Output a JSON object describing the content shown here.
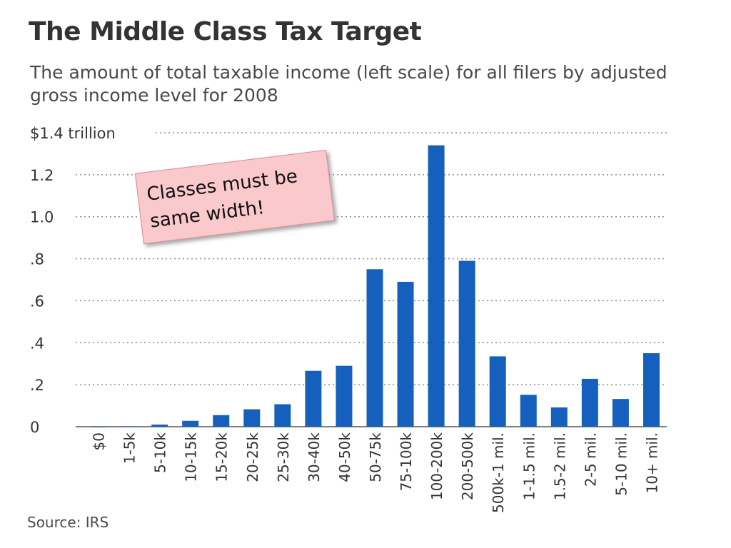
{
  "chart_data": {
    "type": "bar",
    "title": "The Middle Class Tax Target",
    "subtitle": "The amount of total taxable income (left scale) for all filers by adjusted gross income level for 2008",
    "ylim": [
      0,
      1.4
    ],
    "yticks": [
      {
        "value": 1.4,
        "label": "$1.4 trillion"
      },
      {
        "value": 1.2,
        "label": "1.2"
      },
      {
        "value": 1.0,
        "label": "1.0"
      },
      {
        "value": 0.8,
        "label": ".8"
      },
      {
        "value": 0.6,
        "label": ".6"
      },
      {
        "value": 0.4,
        "label": ".4"
      },
      {
        "value": 0.2,
        "label": ".2"
      },
      {
        "value": 0,
        "label": "0"
      }
    ],
    "categories": [
      "$0",
      "1-5k",
      "5-10k",
      "10-15k",
      "15-20k",
      "20-25k",
      "25-30k",
      "30-40k",
      "40-50k",
      "50-75k",
      "75-100k",
      "100-200k",
      "200-500k",
      "500k-1 mil.",
      "1-1.5 mil.",
      "1.5-2 mil.",
      "2-5 mil.",
      "5-10 mil.",
      "10+ mil."
    ],
    "values": [
      0,
      0.002,
      0.01,
      0.028,
      0.055,
      0.083,
      0.107,
      0.266,
      0.29,
      0.75,
      0.69,
      1.34,
      0.79,
      0.335,
      0.152,
      0.092,
      0.228,
      0.132,
      0.35
    ],
    "grid": true,
    "bar_color": "#1560bd"
  },
  "annotation": {
    "text": "Classes must be same width!"
  },
  "source": "Source: IRS"
}
